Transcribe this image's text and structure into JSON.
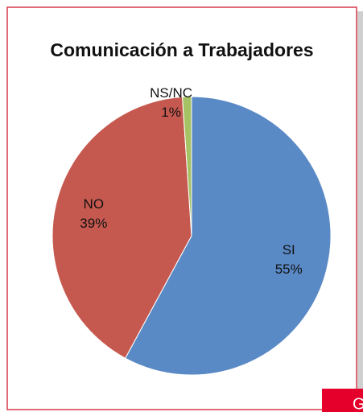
{
  "chart_data": {
    "type": "pie",
    "title": "Comunicación a Trabajadores",
    "categories": [
      "SI",
      "NO",
      "NS/NC"
    ],
    "values": [
      55,
      39,
      1
    ],
    "value_labels": [
      "55%",
      "39%",
      "1%"
    ],
    "colors": [
      "#5a8ac6",
      "#c6594f",
      "#a5c264"
    ]
  },
  "corner_tab": "G"
}
